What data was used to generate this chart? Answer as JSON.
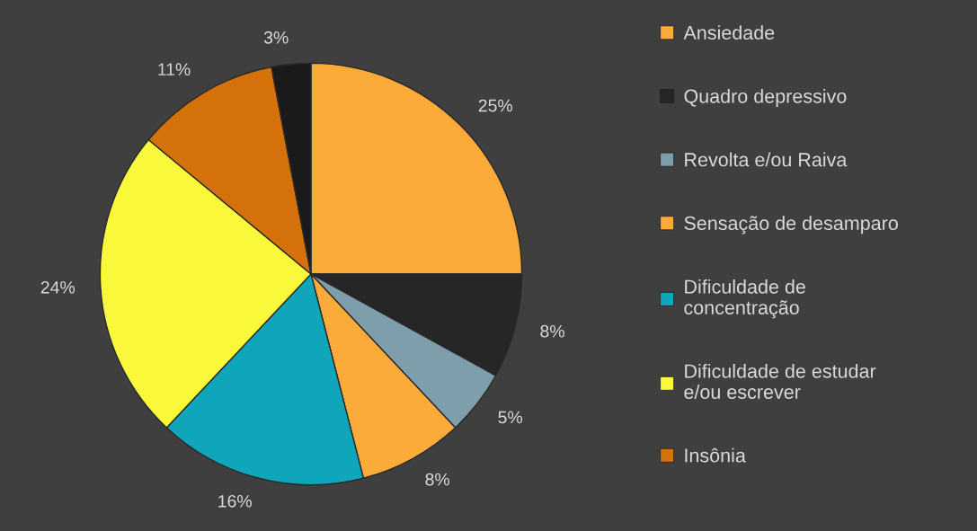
{
  "chart_data": {
    "type": "pie",
    "categories": [
      "Ansiedade",
      "Quadro depressivo",
      "Revolta e/ou Raiva",
      "Sensação de desamparo",
      "Dificuldade de\nconcentração",
      "Dificuldade de estudar\ne/ou escrever",
      "Insônia",
      null
    ],
    "values": [
      25,
      8,
      5,
      8,
      16,
      24,
      11,
      3
    ],
    "colors": [
      "#fbab3a",
      "#262626",
      "#7f9eac",
      "#fbab3a",
      "#0fa6bb",
      "#f9f83a",
      "#d4710a",
      "#1a1a1a"
    ],
    "value_labels": [
      "25%",
      "8%",
      "5%",
      "8%",
      "16%",
      "24%",
      "11%",
      "3%"
    ],
    "legend": "right"
  }
}
